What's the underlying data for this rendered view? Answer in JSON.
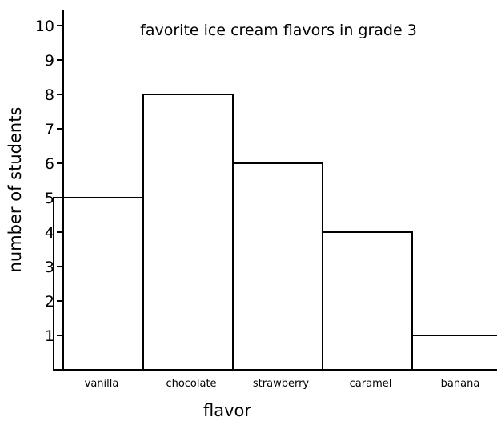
{
  "chart_data": {
    "type": "bar",
    "title": "favorite ice cream flavors  in grade 3",
    "xlabel": "flavor",
    "ylabel": "number of students",
    "categories": [
      "vanilla",
      "chocolate",
      "strawberry",
      "caramel",
      "banana"
    ],
    "values": [
      5,
      8,
      6,
      4,
      1
    ],
    "ylim": [
      0,
      10
    ],
    "yticks": [
      "1",
      "2",
      "3",
      "4",
      "5",
      "6",
      "7",
      "8",
      "9",
      "10"
    ],
    "grid": false,
    "legend": "none"
  }
}
